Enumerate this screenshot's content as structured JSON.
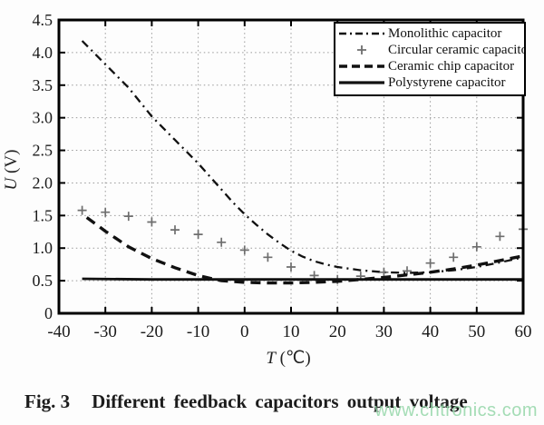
{
  "figure": {
    "caption_label": "Fig. 3",
    "caption_text": "Different feedback capacitors output voltage",
    "watermark": "www.chtronics.com",
    "watermark_color": "#98d8ac"
  },
  "chart_data": {
    "type": "line",
    "title": "",
    "xlabel_var": "T",
    "xlabel_unit": "(℃)",
    "ylabel_var": "U",
    "ylabel_unit": "(V)",
    "xlim": [
      -40,
      60
    ],
    "ylim": [
      0,
      4.5
    ],
    "x_ticks": [
      -40,
      -30,
      -20,
      -10,
      0,
      10,
      20,
      30,
      40,
      50,
      60
    ],
    "x_tick_labels": [
      "-40",
      "-30",
      "-20",
      "-10",
      "0",
      "10",
      "20",
      "30",
      "40",
      "50",
      "60"
    ],
    "y_ticks": [
      0,
      0.5,
      1,
      1.5,
      2,
      2.5,
      3,
      3.5,
      4,
      4.5
    ],
    "y_tick_labels": [
      "0",
      "0.5",
      "1.0",
      "1.5",
      "2.0",
      "2.5",
      "3.0",
      "3.5",
      "4.0",
      "4.5"
    ],
    "grid": true,
    "grid_style": "dotted",
    "legend_position": "top-right",
    "axis_color": "#000000",
    "grid_color": "#9a9a9a",
    "series": [
      {
        "name": "Monolithic capacitor",
        "style": "dashdot",
        "color": "#111111",
        "points": [
          [
            -35,
            4.18
          ],
          [
            -32.5,
            4.0
          ],
          [
            -30,
            3.82
          ],
          [
            -27.5,
            3.64
          ],
          [
            -25,
            3.46
          ],
          [
            -22.5,
            3.24
          ],
          [
            -20,
            3.02
          ],
          [
            -17.5,
            2.84
          ],
          [
            -15,
            2.66
          ],
          [
            -12.5,
            2.48
          ],
          [
            -10,
            2.3
          ],
          [
            -7.5,
            2.1
          ],
          [
            -5,
            1.9
          ],
          [
            -2.5,
            1.7
          ],
          [
            0,
            1.52
          ],
          [
            2.5,
            1.36
          ],
          [
            5,
            1.21
          ],
          [
            7.5,
            1.08
          ],
          [
            10,
            0.96
          ],
          [
            12.5,
            0.87
          ],
          [
            15,
            0.8
          ],
          [
            17.5,
            0.75
          ],
          [
            20,
            0.71
          ],
          [
            25,
            0.66
          ],
          [
            30,
            0.63
          ],
          [
            35,
            0.62
          ],
          [
            40,
            0.63
          ],
          [
            45,
            0.66
          ],
          [
            50,
            0.71
          ],
          [
            55,
            0.78
          ],
          [
            60,
            0.86
          ]
        ]
      },
      {
        "name": "Circular ceramic capacitor",
        "style": "plus-markers",
        "color": "#6e6e6e",
        "points": [
          [
            -35,
            1.58
          ],
          [
            -30,
            1.55
          ],
          [
            -25,
            1.49
          ],
          [
            -20,
            1.4
          ],
          [
            -15,
            1.28
          ],
          [
            -10,
            1.21
          ],
          [
            -5,
            1.09
          ],
          [
            0,
            0.97
          ],
          [
            5,
            0.86
          ],
          [
            10,
            0.71
          ],
          [
            15,
            0.58
          ],
          [
            20,
            0.52
          ],
          [
            25,
            0.57
          ],
          [
            30,
            0.63
          ],
          [
            35,
            0.65
          ],
          [
            40,
            0.77
          ],
          [
            45,
            0.86
          ],
          [
            50,
            1.02
          ],
          [
            55,
            1.18
          ],
          [
            60,
            1.29
          ]
        ]
      },
      {
        "name": "Ceramic chip capacitor",
        "style": "dashed",
        "color": "#111111",
        "points": [
          [
            -34,
            1.47
          ],
          [
            -30,
            1.26
          ],
          [
            -25,
            1.02
          ],
          [
            -20,
            0.84
          ],
          [
            -15,
            0.7
          ],
          [
            -10,
            0.58
          ],
          [
            -7,
            0.53
          ],
          [
            -5,
            0.5
          ],
          [
            0,
            0.475
          ],
          [
            5,
            0.465
          ],
          [
            10,
            0.465
          ],
          [
            15,
            0.475
          ],
          [
            20,
            0.49
          ],
          [
            25,
            0.52
          ],
          [
            30,
            0.55
          ],
          [
            35,
            0.59
          ],
          [
            40,
            0.63
          ],
          [
            45,
            0.68
          ],
          [
            50,
            0.74
          ],
          [
            55,
            0.81
          ],
          [
            60,
            0.88
          ]
        ]
      },
      {
        "name": "Polystyrene capacitor",
        "style": "solid",
        "color": "#111111",
        "points": [
          [
            -35,
            0.53
          ],
          [
            -20,
            0.52
          ],
          [
            0,
            0.52
          ],
          [
            20,
            0.52
          ],
          [
            40,
            0.52
          ],
          [
            60,
            0.52
          ]
        ]
      }
    ]
  }
}
